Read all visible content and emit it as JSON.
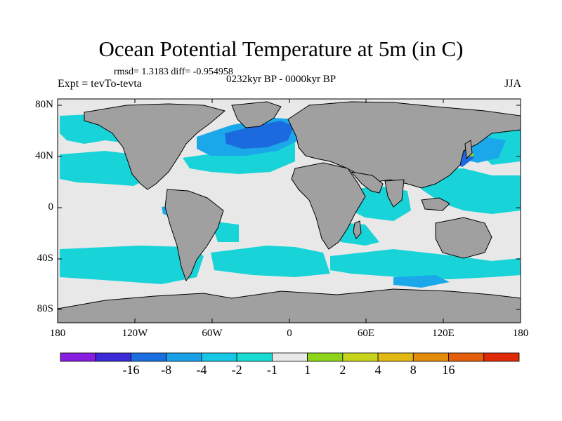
{
  "title": "Ocean Potential Temperature at 5m (in C)",
  "stats": "rmsd= 1.3183 diff= -0.954958",
  "expt": "Expt = tevTo-tevta",
  "period": "0232kyr BP - 0000kyr BP",
  "season": "JJA",
  "y_ticks": [
    "80N",
    "40N",
    "0",
    "40S",
    "80S"
  ],
  "x_ticks": [
    "180",
    "120W",
    "60W",
    "0",
    "60E",
    "120E",
    "180"
  ],
  "colorbar": {
    "colors": [
      "#8a1ee0",
      "#3a2ad8",
      "#1a6ee0",
      "#1aa0e6",
      "#16c8e6",
      "#18dcd4",
      "#e8e8e8",
      "#8ed41a",
      "#c8d41a",
      "#e2b812",
      "#e28c0c",
      "#e25e0a",
      "#e02a06"
    ],
    "labels": [
      "-16",
      "-8",
      "-4",
      "-2",
      "-1",
      "1",
      "2",
      "4",
      "8",
      "16"
    ]
  },
  "colors": {
    "land": "#a0a0a0",
    "neutral": "#e8e8e8",
    "cyan": "#18d4d8",
    "light_blue": "#1aa8ea",
    "blue": "#1c6ae0",
    "green": "#8ed41a"
  }
}
